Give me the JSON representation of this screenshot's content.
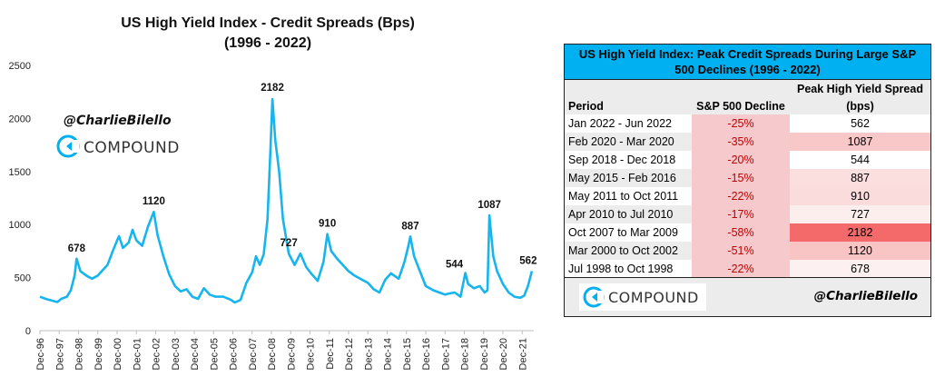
{
  "chart_data": {
    "type": "line",
    "title": "US High Yield Index - Credit Spreads (Bps)",
    "subtitle": "(1996 - 2022)",
    "ylim": [
      0,
      2500
    ],
    "yticks": [
      "0",
      "500",
      "1000",
      "1500",
      "2000",
      "2500"
    ],
    "xticks": [
      "Dec-96",
      "Dec-97",
      "Dec-98",
      "Dec-99",
      "Dec-00",
      "Dec-01",
      "Dec-02",
      "Dec-03",
      "Dec-04",
      "Dec-05",
      "Dec-06",
      "Dec-07",
      "Dec-08",
      "Dec-09",
      "Dec-10",
      "Dec-11",
      "Dec-12",
      "Dec-13",
      "Dec-14",
      "Dec-15",
      "Dec-16",
      "Dec-17",
      "Dec-18",
      "Dec-19",
      "Dec-20",
      "Dec-21"
    ],
    "line_color": "#17b5ee",
    "series": [
      {
        "values": [
          [
            1996.9,
            320
          ],
          [
            1997.2,
            300
          ],
          [
            1997.5,
            285
          ],
          [
            1997.8,
            270
          ],
          [
            1998.0,
            300
          ],
          [
            1998.3,
            320
          ],
          [
            1998.5,
            380
          ],
          [
            1998.7,
            520
          ],
          [
            1998.8,
            678
          ],
          [
            1999.0,
            560
          ],
          [
            1999.3,
            520
          ],
          [
            1999.6,
            490
          ],
          [
            1999.9,
            520
          ],
          [
            2000.1,
            560
          ],
          [
            2000.4,
            620
          ],
          [
            2000.7,
            760
          ],
          [
            2000.9,
            850
          ],
          [
            2001.0,
            890
          ],
          [
            2001.2,
            780
          ],
          [
            2001.5,
            830
          ],
          [
            2001.7,
            950
          ],
          [
            2001.9,
            850
          ],
          [
            2002.2,
            800
          ],
          [
            2002.5,
            980
          ],
          [
            2002.8,
            1120
          ],
          [
            2003.0,
            900
          ],
          [
            2003.3,
            700
          ],
          [
            2003.6,
            530
          ],
          [
            2003.9,
            420
          ],
          [
            2004.2,
            370
          ],
          [
            2004.5,
            390
          ],
          [
            2004.8,
            320
          ],
          [
            2005.1,
            300
          ],
          [
            2005.4,
            400
          ],
          [
            2005.7,
            340
          ],
          [
            2006.0,
            320
          ],
          [
            2006.4,
            320
          ],
          [
            2006.8,
            290
          ],
          [
            2007.0,
            265
          ],
          [
            2007.3,
            290
          ],
          [
            2007.6,
            450
          ],
          [
            2007.9,
            550
          ],
          [
            2008.1,
            700
          ],
          [
            2008.3,
            620
          ],
          [
            2008.5,
            720
          ],
          [
            2008.7,
            1050
          ],
          [
            2008.85,
            1700
          ],
          [
            2008.95,
            2182
          ],
          [
            2009.1,
            1800
          ],
          [
            2009.3,
            1500
          ],
          [
            2009.5,
            1050
          ],
          [
            2009.8,
            727
          ],
          [
            2010.1,
            620
          ],
          [
            2010.4,
            727
          ],
          [
            2010.7,
            600
          ],
          [
            2010.95,
            540
          ],
          [
            2011.3,
            470
          ],
          [
            2011.6,
            650
          ],
          [
            2011.8,
            910
          ],
          [
            2012.0,
            750
          ],
          [
            2012.3,
            680
          ],
          [
            2012.6,
            620
          ],
          [
            2012.9,
            560
          ],
          [
            2013.2,
            520
          ],
          [
            2013.5,
            490
          ],
          [
            2013.9,
            450
          ],
          [
            2014.2,
            390
          ],
          [
            2014.5,
            360
          ],
          [
            2014.8,
            480
          ],
          [
            2015.1,
            540
          ],
          [
            2015.5,
            490
          ],
          [
            2015.8,
            650
          ],
          [
            2016.0,
            800
          ],
          [
            2016.1,
            887
          ],
          [
            2016.3,
            700
          ],
          [
            2016.6,
            560
          ],
          [
            2016.9,
            420
          ],
          [
            2017.3,
            380
          ],
          [
            2017.6,
            360
          ],
          [
            2017.9,
            340
          ],
          [
            2018.1,
            350
          ],
          [
            2018.4,
            360
          ],
          [
            2018.7,
            320
          ],
          [
            2018.95,
            544
          ],
          [
            2019.1,
            440
          ],
          [
            2019.4,
            400
          ],
          [
            2019.7,
            420
          ],
          [
            2019.95,
            360
          ],
          [
            2020.1,
            380
          ],
          [
            2020.2,
            1087
          ],
          [
            2020.4,
            700
          ],
          [
            2020.6,
            560
          ],
          [
            2020.9,
            440
          ],
          [
            2021.2,
            360
          ],
          [
            2021.5,
            320
          ],
          [
            2021.8,
            310
          ],
          [
            2022.0,
            330
          ],
          [
            2022.2,
            420
          ],
          [
            2022.4,
            562
          ]
        ]
      }
    ],
    "annotations": [
      {
        "x": 1998.8,
        "y": 678,
        "label": "678"
      },
      {
        "x": 2002.8,
        "y": 1120,
        "label": "1120"
      },
      {
        "x": 2008.95,
        "y": 2182,
        "label": "2182"
      },
      {
        "x": 2009.8,
        "y": 727,
        "label": "727"
      },
      {
        "x": 2011.8,
        "y": 910,
        "label": "910"
      },
      {
        "x": 2016.1,
        "y": 887,
        "label": "887"
      },
      {
        "x": 2018.95,
        "y": 544,
        "label": "544"
      },
      {
        "x": 2020.2,
        "y": 1087,
        "label": "1087"
      },
      {
        "x": 2022.4,
        "y": 562,
        "label": "562"
      }
    ]
  },
  "branding": {
    "handle": "@CharlieBilello",
    "logo_text": "COMPOUND",
    "logo_color": "#00b0f0"
  },
  "table": {
    "title": "US High Yield Index: Peak Credit Spreads During Large S&P 500 Declines (1996 - 2022)",
    "header_color": "#00b0f0",
    "columns": {
      "period": "Period",
      "decline": "S&P 500 Decline",
      "spread_top": "Peak High Yield Spread",
      "spread_bottom": "(bps)"
    },
    "rows": [
      {
        "period": "Jan 2022 - Jun 2022",
        "decline": "-25%",
        "spread": "562",
        "shade": "#ffffff"
      },
      {
        "period": "Feb 2020 - Mar 2020",
        "decline": "-35%",
        "spread": "1087",
        "shade": "#f8c8c8"
      },
      {
        "period": "Sep 2018 - Dec 2018",
        "decline": "-20%",
        "spread": "544",
        "shade": "#ffffff"
      },
      {
        "period": "May 2015 - Feb 2016",
        "decline": "-15%",
        "spread": "887",
        "shade": "#fbdede"
      },
      {
        "period": "May 2011 to Oct 2011",
        "decline": "-22%",
        "spread": "910",
        "shade": "#fbdcdc"
      },
      {
        "period": "Apr 2010 to Jul 2010",
        "decline": "-17%",
        "spread": "727",
        "shade": "#fdeeee"
      },
      {
        "period": "Oct 2007 to Mar 2009",
        "decline": "-58%",
        "spread": "2182",
        "shade": "#f46a6a"
      },
      {
        "period": "Mar 2000 to Oct 2002",
        "decline": "-51%",
        "spread": "1120",
        "shade": "#f8c4c4"
      },
      {
        "period": "Jul 1998 to Oct 1998",
        "decline": "-22%",
        "spread": "678",
        "shade": "#fdf0f0"
      }
    ],
    "footer_logo": "COMPOUND",
    "footer_handle": "@CharlieBilello"
  }
}
